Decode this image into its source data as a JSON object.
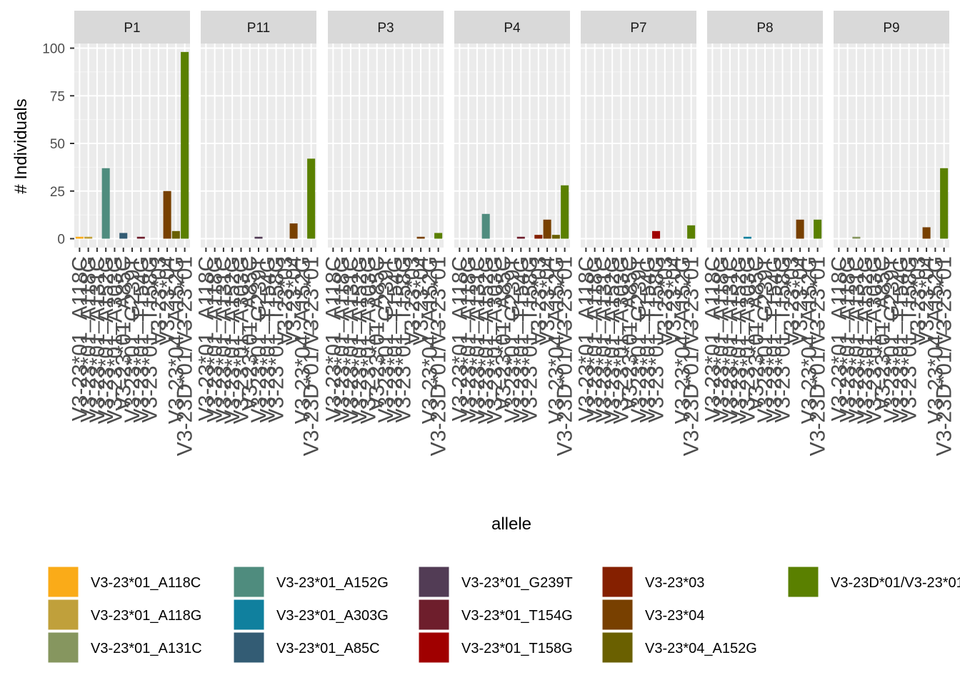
{
  "chart_data": {
    "type": "bar",
    "facets": [
      "P1",
      "P11",
      "P3",
      "P4",
      "P7",
      "P8",
      "P9"
    ],
    "categories": [
      "V3-23*01_A118C",
      "V3-23*01_A118G",
      "V3-23*01_A131C",
      "V3-23*01_A152G",
      "V3-23*01_A303G",
      "V3-23*01_A85C",
      "V3-23*01_G239T",
      "V3-23*01_T154G",
      "V3-23*01_T158G",
      "V3-23*03",
      "V3-23*04",
      "V3-23*04_A152G",
      "V3-23D*01/V3-23*01"
    ],
    "colors": [
      "#FAAB18",
      "#C0A03B",
      "#86965F",
      "#4F8C7E",
      "#10809E",
      "#335C74",
      "#523C55",
      "#6E1E2C",
      "#A00000",
      "#852000",
      "#784000",
      "#6A6000",
      "#5A8000"
    ],
    "values": {
      "P1": [
        1,
        1,
        0,
        37,
        0,
        3,
        0,
        1,
        0,
        0,
        25,
        4,
        98
      ],
      "P11": [
        0,
        0,
        0,
        0,
        0,
        0,
        1,
        0,
        0,
        0,
        8,
        0,
        42
      ],
      "P3": [
        0,
        0,
        0,
        0,
        0,
        0,
        0,
        0,
        0,
        0,
        1,
        0,
        3
      ],
      "P4": [
        0,
        0,
        0,
        13,
        0,
        0,
        0,
        1,
        0,
        2,
        10,
        2,
        28
      ],
      "P7": [
        0,
        0,
        0,
        0,
        0,
        0,
        0,
        0,
        4,
        0,
        0,
        0,
        7
      ],
      "P8": [
        0,
        0,
        0,
        0,
        1,
        0,
        0,
        0,
        0,
        0,
        10,
        0,
        10
      ],
      "P9": [
        0,
        0,
        1,
        0,
        0,
        0,
        0,
        0,
        0,
        0,
        6,
        0,
        37
      ]
    },
    "ylim": [
      0,
      115
    ],
    "yticks": [
      0,
      25,
      50,
      75,
      100
    ],
    "xlabel": "allele",
    "ylabel": "# Individuals",
    "legend_position": "bottom",
    "grid": true
  }
}
